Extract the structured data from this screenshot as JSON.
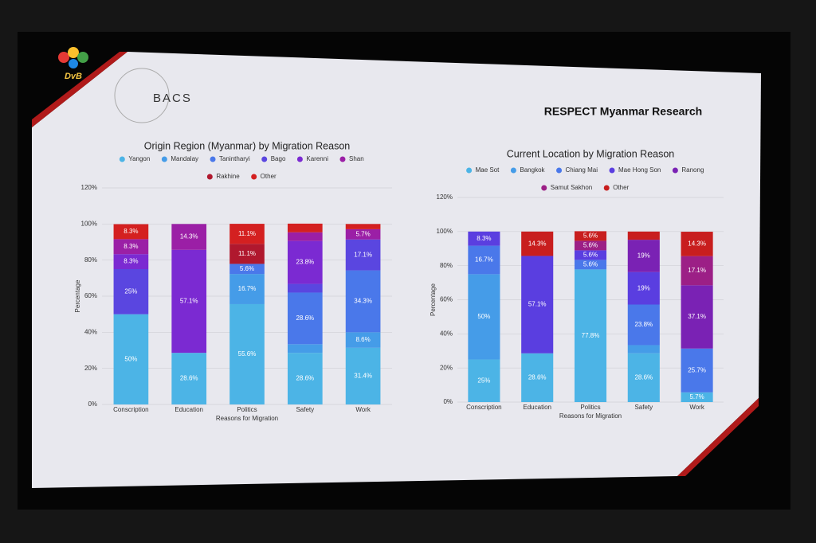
{
  "header": {
    "logo": "DvB",
    "org": "BACS",
    "title": "RESPECT Myanmar Research"
  },
  "chart_data": [
    {
      "type": "stacked-bar",
      "title": "Origin Region (Myanmar) by Migration Reason",
      "xlabel": "Reasons for Migration",
      "ylabel": "Percentage",
      "categories": [
        "Conscription",
        "Education",
        "Politics",
        "Safety",
        "Work"
      ],
      "ylim": [
        0,
        120
      ],
      "yticks": [
        {
          "value": 0,
          "label": "0%"
        },
        {
          "value": 20,
          "label": "20%"
        },
        {
          "value": 40,
          "label": "40%"
        },
        {
          "value": 60,
          "label": "60%"
        },
        {
          "value": 80,
          "label": "80%"
        },
        {
          "value": 100,
          "label": "100%"
        },
        {
          "value": 120,
          "label": "120%"
        }
      ],
      "grid": true,
      "series": [
        {
          "name": "Yangon",
          "color": "#4cb4e6",
          "values": [
            50,
            28.6,
            55.6,
            28.6,
            31.4
          ],
          "value_labels": [
            "50%",
            "28.6%",
            "55.6%",
            "28.6%",
            "31.4%"
          ]
        },
        {
          "name": "Mandalay",
          "color": "#459ce8",
          "values": [
            0,
            0,
            16.7,
            4.8,
            8.6
          ],
          "value_labels": [
            null,
            null,
            "16.7%",
            null,
            "8.6%"
          ]
        },
        {
          "name": "Tanintharyi",
          "color": "#4a78ea",
          "values": [
            0,
            0,
            5.6,
            28.6,
            34.3
          ],
          "value_labels": [
            null,
            null,
            "5.6%",
            "28.6%",
            "34.3%"
          ]
        },
        {
          "name": "Bago",
          "color": "#5a46e0",
          "values": [
            25,
            0,
            0,
            4.8,
            17.1
          ],
          "value_labels": [
            "25%",
            null,
            null,
            null,
            "17.1%"
          ]
        },
        {
          "name": "Karenni",
          "color": "#7b2ad2",
          "values": [
            8.3,
            57.1,
            0,
            23.8,
            0
          ],
          "value_labels": [
            "8.3%",
            "57.1%",
            null,
            "23.8%",
            null
          ]
        },
        {
          "name": "Shan",
          "color": "#9b1fa6",
          "values": [
            8.3,
            14.3,
            0,
            4.8,
            5.7
          ],
          "value_labels": [
            "8.3%",
            "14.3%",
            null,
            null,
            "5.7%"
          ]
        },
        {
          "name": "Rakhine",
          "color": "#b0182e",
          "values": [
            0,
            0,
            11.1,
            0,
            0
          ],
          "value_labels": [
            null,
            null,
            "11.1%",
            null,
            null
          ]
        },
        {
          "name": "Other",
          "color": "#d42020",
          "values": [
            8.3,
            0,
            11.1,
            4.8,
            2.9
          ],
          "value_labels": [
            "8.3%",
            null,
            "11.1%",
            null,
            null
          ]
        }
      ]
    },
    {
      "type": "stacked-bar",
      "title": "Current Location by Migration Reason",
      "xlabel": "Reasons for Migration",
      "ylabel": "Percentage",
      "categories": [
        "Conscription",
        "Education",
        "Politics",
        "Safety",
        "Work"
      ],
      "ylim": [
        0,
        120
      ],
      "yticks": [
        {
          "value": 0,
          "label": "0%"
        },
        {
          "value": 20,
          "label": "20%"
        },
        {
          "value": 40,
          "label": "40%"
        },
        {
          "value": 60,
          "label": "60%"
        },
        {
          "value": 80,
          "label": "80%"
        },
        {
          "value": 100,
          "label": "100%"
        },
        {
          "value": 120,
          "label": "120%"
        }
      ],
      "grid": true,
      "series": [
        {
          "name": "Mae Sot",
          "color": "#4cb4e6",
          "values": [
            25,
            28.6,
            77.8,
            28.6,
            5.7
          ],
          "value_labels": [
            "25%",
            "28.6%",
            "77.8%",
            "28.6%",
            "5.7%"
          ]
        },
        {
          "name": "Bangkok",
          "color": "#459ce8",
          "values": [
            50,
            0,
            0,
            4.8,
            0
          ],
          "value_labels": [
            "50%",
            null,
            null,
            null,
            null
          ]
        },
        {
          "name": "Chiang Mai",
          "color": "#4a78ea",
          "values": [
            16.7,
            0,
            5.6,
            23.8,
            25.7
          ],
          "value_labels": [
            "16.7%",
            null,
            "5.6%",
            "23.8%",
            "25.7%"
          ]
        },
        {
          "name": "Mae Hong Son",
          "color": "#5a3ee0",
          "values": [
            8.3,
            57.1,
            5.6,
            19,
            0
          ],
          "value_labels": [
            "8.3%",
            "57.1%",
            "5.6%",
            "19%",
            null
          ]
        },
        {
          "name": "Ranong",
          "color": "#7a22b4",
          "values": [
            0,
            0,
            0,
            19,
            37.1
          ],
          "value_labels": [
            null,
            null,
            null,
            "19%",
            "37.1%"
          ]
        },
        {
          "name": "Samut Sakhon",
          "color": "#9c1f86",
          "values": [
            0,
            0,
            5.6,
            0,
            17.1
          ],
          "value_labels": [
            null,
            null,
            "5.6%",
            null,
            "17.1%"
          ]
        },
        {
          "name": "Other",
          "color": "#c81e1e",
          "values": [
            0,
            14.3,
            5.6,
            4.8,
            14.3
          ],
          "value_labels": [
            null,
            "14.3%",
            "5.6%",
            null,
            "14.3%"
          ]
        }
      ]
    }
  ]
}
